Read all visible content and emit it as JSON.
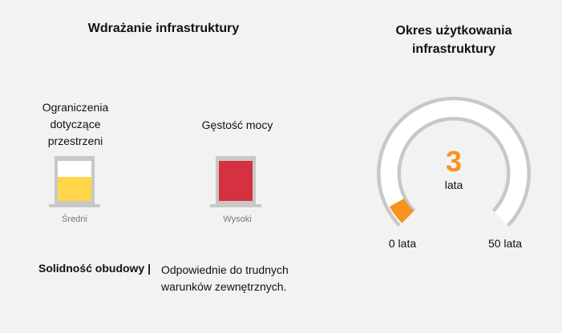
{
  "deployment": {
    "title": "Wdrażanie infrastruktury",
    "meters": [
      {
        "label": "Ograniczenia dotyczące przestrzeni",
        "level": "Średni",
        "fill_fraction": 0.6,
        "color": "#ffd54a"
      },
      {
        "label": "Gęstość mocy",
        "level": "Wysoki",
        "fill_fraction": 1.0,
        "color": "#d63140"
      }
    ],
    "robustness_label": "Solidność obudowy |",
    "robustness_value": "Odpowiednie do trudnych warunków zewnętrznych."
  },
  "lifespan": {
    "title": "Okres użytkowania infrastruktury",
    "value": "3",
    "value_unit": "lata",
    "min_label": "0 lata",
    "max_label": "50 lata",
    "min": 0,
    "max": 50,
    "current": 3,
    "accent_color": "#f7931e"
  }
}
